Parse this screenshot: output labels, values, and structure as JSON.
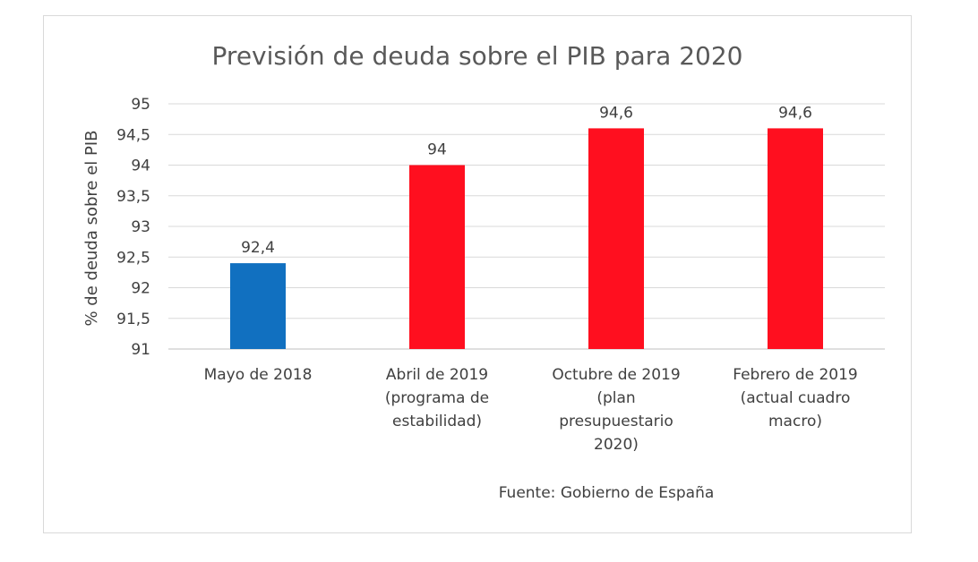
{
  "chart_data": {
    "type": "bar",
    "title": "Previsión de deuda sobre el PIB para 2020",
    "xlabel": "",
    "ylabel": "% de deuda sobre el PIB",
    "ylim": [
      91,
      95
    ],
    "y_ticks": [
      "91",
      "91,5",
      "92",
      "92,5",
      "93",
      "93,5",
      "94",
      "94,5",
      "95"
    ],
    "tick_values": [
      91,
      91.5,
      92,
      92.5,
      93,
      93.5,
      94,
      94.5,
      95
    ],
    "grid": true,
    "legend": "none",
    "categories": [
      [
        "Mayo de 2018"
      ],
      [
        "Abril de 2019",
        "(programa de",
        "estabilidad)"
      ],
      [
        "Octubre de 2019",
        "(plan",
        "presupuestario",
        "2020)"
      ],
      [
        "Febrero de 2019",
        "(actual cuadro",
        "macro)"
      ]
    ],
    "values": [
      92.4,
      94,
      94.6,
      94.6
    ],
    "data_labels": [
      "92,4",
      "94",
      "94,6",
      "94,6"
    ],
    "bar_colors": [
      "#1170c0",
      "#ff0f1f",
      "#ff0f1f",
      "#ff0f1f"
    ],
    "annotation": "Fuente: Gobierno de España"
  }
}
